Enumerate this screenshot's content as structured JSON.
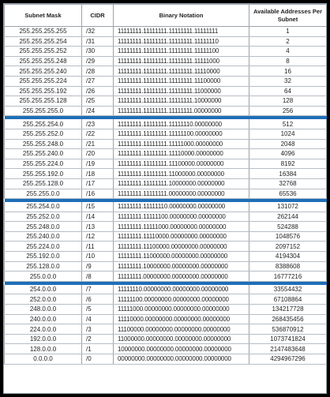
{
  "headers": [
    "Subnet Mask",
    "CIDR",
    "Binary Notation",
    "Available Addresses Per Subnet"
  ],
  "groups": [
    [
      [
        "255.255.255.255",
        "/32",
        "11111111.11111111.11111111.11111111",
        "1"
      ],
      [
        "255.255.255.254",
        "/31",
        "11111111.11111111.11111111.11111110",
        "2"
      ],
      [
        "255.255.255.252",
        "/30",
        "11111111.11111111.11111111.11111100",
        "4"
      ],
      [
        "255.255.255.248",
        "/29",
        "11111111.11111111.11111111.11111000",
        "8"
      ],
      [
        "255.255.255.240",
        "/28",
        "11111111.11111111.11111111.11110000",
        "16"
      ],
      [
        "255.255.255.224",
        "/27",
        "11111111.11111111.11111111.11100000",
        "32"
      ],
      [
        "255.255.255.192",
        "/26",
        "11111111.11111111.11111111.11000000",
        "64"
      ],
      [
        "255.255.255.128",
        "/25",
        "11111111.11111111.11111111.10000000",
        "128"
      ],
      [
        "255.255.255.0",
        "/24",
        "11111111.11111111.11111111.00000000",
        "256"
      ]
    ],
    [
      [
        "255.255.254.0",
        "/23",
        "11111111.11111111.11111110.00000000",
        "512"
      ],
      [
        "255.255.252.0",
        "/22",
        "11111111.11111111.11111100.00000000",
        "1024"
      ],
      [
        "255.255.248.0",
        "/21",
        "11111111.11111111.11111000.00000000",
        "2048"
      ],
      [
        "255.255.240.0",
        "/20",
        "11111111.11111111.11110000.00000000",
        "4096"
      ],
      [
        "255.255.224.0",
        "/19",
        "11111111.11111111.11100000.00000000",
        "8192"
      ],
      [
        "255.255.192.0",
        "/18",
        "11111111.11111111.11000000.00000000",
        "16384"
      ],
      [
        "255.255.128.0",
        "/17",
        "11111111.11111111.10000000.00000000",
        "32768"
      ],
      [
        "255.255.0.0",
        "/16",
        "11111111.11111111.00000000.00000000",
        "65536"
      ]
    ],
    [
      [
        "255.254.0.0",
        "/15",
        "11111111.11111110.00000000.00000000",
        "131072"
      ],
      [
        "255.252.0.0",
        "/14",
        "11111111.11111100.00000000.00000000",
        "262144"
      ],
      [
        "255.248.0.0",
        "/13",
        "11111111.11111000.00000000.00000000",
        "524288"
      ],
      [
        "255.240.0.0",
        "/12",
        "11111111.11110000.00000000.00000000",
        "1048576"
      ],
      [
        "255.224.0.0",
        "/11",
        "11111111.11100000.00000000.00000000",
        "2097152"
      ],
      [
        "255.192.0.0",
        "/10",
        "11111111.11000000.00000000.00000000",
        "4194304"
      ],
      [
        "255.128.0.0",
        "/9",
        "11111111.10000000.00000000.00000000",
        "8388608"
      ],
      [
        "255.0.0.0",
        "/8",
        "11111111.00000000.00000000.00000000",
        "16777216"
      ]
    ],
    [
      [
        "254.0.0.0",
        "/7",
        "11111110.00000000.00000000.00000000",
        "33554432"
      ],
      [
        "252.0.0.0",
        "/6",
        "11111100.00000000.00000000.00000000",
        "67108864"
      ],
      [
        "248.0.0.0",
        "/5",
        "11111000.00000000.00000000.00000000",
        "134217728"
      ],
      [
        "240.0.0.0",
        "/4",
        "11110000.00000000.00000000.00000000",
        "268435456"
      ],
      [
        "224.0.0.0",
        "/3",
        "11100000.00000000.00000000.00000000",
        "536870912"
      ],
      [
        "192.0.0.0",
        "/2",
        "11000000.00000000.00000000.00000000",
        "1073741824"
      ],
      [
        "128.0.0.0",
        "/1",
        "10000000.00000000.00000000.00000000",
        "2147483648"
      ],
      [
        "0.0.0.0",
        "/0",
        "00000000.00000000.00000000.00000000",
        "4294967296"
      ]
    ]
  ],
  "colors": {
    "separator": "#1f6fb8",
    "grid": "#9aa3ad"
  }
}
